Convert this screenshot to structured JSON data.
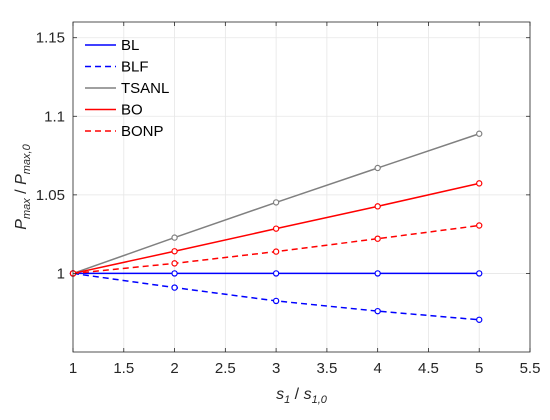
{
  "chart_data": {
    "type": "line",
    "title": "",
    "xlabel": {
      "base1": "s",
      "sub1": "1",
      "sep": " / ",
      "base2": "s",
      "sub2": "1,0"
    },
    "ylabel": {
      "base1": "P",
      "sub1": "max",
      "sep": " / ",
      "base2": "P",
      "sub2": "max,0"
    },
    "xlim": [
      1,
      5.5
    ],
    "ylim": [
      0.95,
      1.16
    ],
    "xticks": [
      1,
      1.5,
      2,
      2.5,
      3,
      3.5,
      4,
      4.5,
      5,
      5.5
    ],
    "xtick_labels": [
      "1",
      "1.5",
      "2",
      "2.5",
      "3",
      "3.5",
      "4",
      "4.5",
      "5",
      "5.5"
    ],
    "yticks": [
      1,
      1.05,
      1.1,
      1.15
    ],
    "ytick_labels": [
      "1",
      "1.05",
      "1.1",
      "1.15"
    ],
    "grid": true,
    "legend_position": "top-left",
    "x": [
      1,
      2,
      3,
      4,
      5
    ],
    "series": [
      {
        "name": "BL",
        "values": [
          1.0,
          1.0,
          1.0,
          1.0,
          1.0
        ],
        "color": "#0000ff",
        "dash": "solid"
      },
      {
        "name": "BLF",
        "values": [
          1.0,
          0.991,
          0.9825,
          0.976,
          0.9705
        ],
        "color": "#0000ff",
        "dash": "dashed"
      },
      {
        "name": "TSANL",
        "values": [
          1.0,
          1.0228,
          1.0452,
          1.0671,
          1.0889
        ],
        "color": "#808080",
        "dash": "solid"
      },
      {
        "name": "BO",
        "values": [
          1.0,
          1.0141,
          1.0285,
          1.0427,
          1.0573
        ],
        "color": "#ff0000",
        "dash": "solid"
      },
      {
        "name": "BONP",
        "values": [
          1.0,
          1.0064,
          1.0139,
          1.0221,
          1.0305
        ],
        "color": "#ff0000",
        "dash": "dashed"
      }
    ]
  }
}
